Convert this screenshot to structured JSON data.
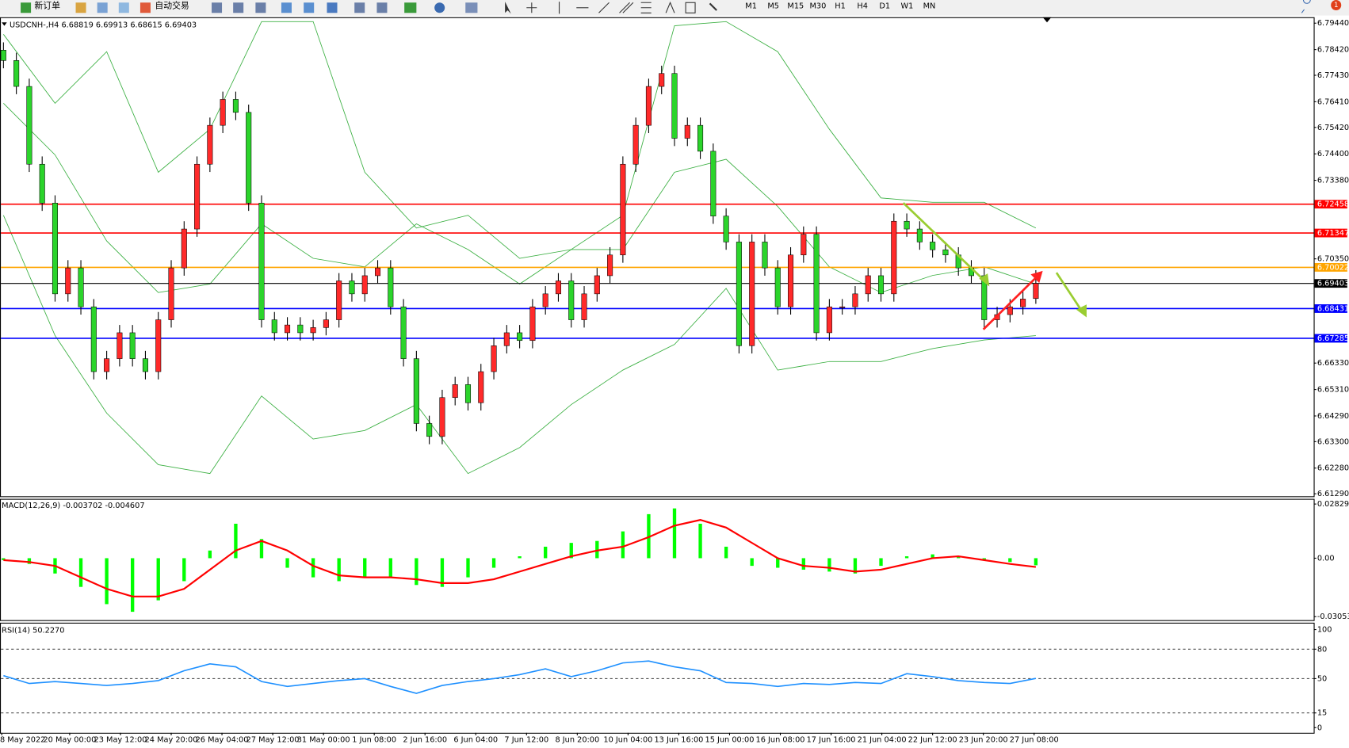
{
  "toolbar": {
    "new_order": "新订单",
    "auto_trading": "自动交易",
    "timeframes": [
      "M1",
      "M5",
      "M15",
      "M30",
      "H1",
      "H4",
      "D1",
      "W1",
      "MN"
    ],
    "notifications": 1
  },
  "chart_data": [
    {
      "type": "candlestick",
      "title": "USDCNH-,H4",
      "up_color": "#ff2a2a",
      "down_color": "#2bd42b",
      "candles": [
        [
          6.784,
          6.787,
          6.777,
          6.78
        ],
        [
          6.78,
          6.783,
          6.767,
          6.77
        ],
        [
          6.77,
          6.773,
          6.737,
          6.74
        ],
        [
          6.74,
          6.743,
          6.722,
          6.725
        ],
        [
          6.725,
          6.728,
          6.687,
          6.69
        ],
        [
          6.69,
          6.703,
          6.687,
          6.7
        ],
        [
          6.7,
          6.703,
          6.682,
          6.685
        ],
        [
          6.685,
          6.688,
          6.657,
          6.66
        ],
        [
          6.66,
          6.668,
          6.657,
          6.665
        ],
        [
          6.665,
          6.678,
          6.662,
          6.675
        ],
        [
          6.675,
          6.678,
          6.662,
          6.665
        ],
        [
          6.665,
          6.668,
          6.657,
          6.66
        ],
        [
          6.66,
          6.683,
          6.657,
          6.68
        ],
        [
          6.68,
          6.703,
          6.677,
          6.7
        ],
        [
          6.7,
          6.718,
          6.697,
          6.715
        ],
        [
          6.715,
          6.743,
          6.712,
          6.74
        ],
        [
          6.74,
          6.758,
          6.737,
          6.755
        ],
        [
          6.755,
          6.768,
          6.752,
          6.765
        ],
        [
          6.765,
          6.768,
          6.757,
          6.76
        ],
        [
          6.76,
          6.763,
          6.722,
          6.725
        ],
        [
          6.725,
          6.728,
          6.677,
          6.68
        ],
        [
          6.68,
          6.683,
          6.672,
          6.675
        ],
        [
          6.675,
          6.681,
          6.672,
          6.678
        ],
        [
          6.678,
          6.681,
          6.672,
          6.675
        ],
        [
          6.675,
          6.68,
          6.672,
          6.677
        ],
        [
          6.677,
          6.683,
          6.674,
          6.68
        ],
        [
          6.68,
          6.698,
          6.677,
          6.695
        ],
        [
          6.695,
          6.698,
          6.687,
          6.69
        ],
        [
          6.69,
          6.7,
          6.687,
          6.697
        ],
        [
          6.697,
          6.703,
          6.694,
          6.7
        ],
        [
          6.7,
          6.703,
          6.682,
          6.685
        ],
        [
          6.685,
          6.688,
          6.662,
          6.665
        ],
        [
          6.665,
          6.668,
          6.637,
          6.64
        ],
        [
          6.64,
          6.643,
          6.632,
          6.635
        ],
        [
          6.635,
          6.653,
          6.632,
          6.65
        ],
        [
          6.65,
          6.658,
          6.647,
          6.655
        ],
        [
          6.655,
          6.658,
          6.645,
          6.648
        ],
        [
          6.648,
          6.663,
          6.645,
          6.66
        ],
        [
          6.66,
          6.673,
          6.657,
          6.67
        ],
        [
          6.67,
          6.678,
          6.667,
          6.675
        ],
        [
          6.675,
          6.678,
          6.669,
          6.672
        ],
        [
          6.672,
          6.688,
          6.669,
          6.685
        ],
        [
          6.685,
          6.693,
          6.682,
          6.69
        ],
        [
          6.69,
          6.698,
          6.687,
          6.695
        ],
        [
          6.695,
          6.698,
          6.677,
          6.68
        ],
        [
          6.68,
          6.693,
          6.677,
          6.69
        ],
        [
          6.69,
          6.7,
          6.687,
          6.697
        ],
        [
          6.697,
          6.708,
          6.694,
          6.705
        ],
        [
          6.705,
          6.743,
          6.702,
          6.74
        ],
        [
          6.74,
          6.758,
          6.737,
          6.755
        ],
        [
          6.755,
          6.773,
          6.752,
          6.77
        ],
        [
          6.77,
          6.778,
          6.767,
          6.775
        ],
        [
          6.775,
          6.778,
          6.747,
          6.75
        ],
        [
          6.75,
          6.758,
          6.747,
          6.755
        ],
        [
          6.755,
          6.758,
          6.742,
          6.745
        ],
        [
          6.745,
          6.748,
          6.717,
          6.72
        ],
        [
          6.72,
          6.723,
          6.707,
          6.71
        ],
        [
          6.71,
          6.713,
          6.667,
          6.67
        ],
        [
          6.67,
          6.713,
          6.667,
          6.71
        ],
        [
          6.71,
          6.713,
          6.697,
          6.7
        ],
        [
          6.7,
          6.703,
          6.682,
          6.685
        ],
        [
          6.685,
          6.708,
          6.682,
          6.705
        ],
        [
          6.705,
          6.716,
          6.702,
          6.713
        ],
        [
          6.713,
          6.716,
          6.672,
          6.675
        ],
        [
          6.675,
          6.688,
          6.672,
          6.685
        ],
        [
          6.685,
          6.688,
          6.682,
          6.685
        ],
        [
          6.685,
          6.693,
          6.682,
          6.69
        ],
        [
          6.69,
          6.7,
          6.687,
          6.697
        ],
        [
          6.697,
          6.7,
          6.687,
          6.69
        ],
        [
          6.69,
          6.721,
          6.687,
          6.718
        ],
        [
          6.718,
          6.721,
          6.712,
          6.715
        ],
        [
          6.715,
          6.718,
          6.707,
          6.71
        ],
        [
          6.71,
          6.713,
          6.704,
          6.707
        ],
        [
          6.707,
          6.71,
          6.702,
          6.705
        ],
        [
          6.705,
          6.708,
          6.697,
          6.7
        ],
        [
          6.7,
          6.703,
          6.694,
          6.697
        ],
        [
          6.697,
          6.7,
          6.677,
          6.68
        ],
        [
          6.68,
          6.685,
          6.677,
          6.682
        ],
        [
          6.682,
          6.688,
          6.679,
          6.685
        ],
        [
          6.685,
          6.691,
          6.682,
          6.688
        ],
        [
          6.68819,
          6.69913,
          6.68615,
          6.69403
        ]
      ],
      "bands": {
        "x": [
          0,
          4,
          8,
          12,
          16,
          20,
          24,
          28,
          32,
          36,
          40,
          44,
          48,
          52,
          56,
          60,
          64,
          68,
          72,
          76,
          80
        ],
        "color": "#3cb043",
        "series": [
          {
            "values": [
              6.7901,
              6.7635,
              6.7834,
              6.7369,
              6.7535,
              6.795,
              6.795,
              6.7369,
              6.7154,
              6.7203,
              6.7037,
              6.7071,
              6.7203,
              6.7934,
              6.795,
              6.7834,
              6.7535,
              6.727,
              6.7253,
              6.7253,
              6.7154
            ]
          },
          {
            "values": [
              6.7635,
              6.7436,
              6.7104,
              6.6905,
              6.6938,
              6.717,
              6.7037,
              6.7004,
              6.717,
              6.7071,
              6.6938,
              6.7071,
              6.7071,
              6.7369,
              6.7419,
              6.7237,
              6.7004,
              6.6905,
              6.6971,
              6.7004,
              6.6938
            ]
          },
          {
            "values": [
              6.7203,
              6.6739,
              6.644,
              6.6241,
              6.6207,
              6.6506,
              6.634,
              6.6373,
              6.6473,
              6.6207,
              6.6307,
              6.6473,
              6.6606,
              6.6705,
              6.6921,
              6.6606,
              6.6639,
              6.6639,
              6.6689,
              6.6722,
              6.6739
            ]
          }
        ]
      },
      "levels": [
        {
          "value": 6.72458,
          "color": "#ff0000"
        },
        {
          "value": 6.71347,
          "color": "#ff0000"
        },
        {
          "value": 6.70022,
          "color": "#ffa500"
        },
        {
          "value": 6.69403,
          "color": "#000000"
        },
        {
          "value": 6.68431,
          "color": "#0000ff"
        },
        {
          "value": 6.67285,
          "color": "#0000ff"
        }
      ],
      "ylim": [
        6.6116,
        6.7967
      ],
      "yticks": [
        {
          "value": 6.7944,
          "label": "6.79440"
        },
        {
          "value": 6.7842,
          "label": "6.78420"
        },
        {
          "value": 6.7743,
          "label": "6.77430"
        },
        {
          "value": 6.7641,
          "label": "6.76410"
        },
        {
          "value": 6.7542,
          "label": "6.75420"
        },
        {
          "value": 6.744,
          "label": "6.74400"
        },
        {
          "value": 6.7338,
          "label": "6.73380"
        },
        {
          "value": 6.7035,
          "label": "6.70350"
        },
        {
          "value": 6.6633,
          "label": "6.66330"
        },
        {
          "value": 6.6531,
          "label": "6.65310"
        },
        {
          "value": 6.6429,
          "label": "6.64290"
        },
        {
          "value": 6.633,
          "label": "6.63300"
        },
        {
          "value": 6.6228,
          "label": "6.62280"
        },
        {
          "value": 6.6129,
          "label": "6.61290"
        }
      ],
      "x_labels": [
        "8 May 2022",
        "20 May 00:00",
        "23 May 12:00",
        "24 May 20:00",
        "26 May 04:00",
        "27 May 12:00",
        "31 May 00:00",
        "1 Jun 08:00",
        "2 Jun 16:00",
        "6 Jun 04:00",
        "7 Jun 12:00",
        "8 Jun 20:00",
        "10 Jun 04:00",
        "13 Jun 16:00",
        "15 Jun 00:00",
        "16 Jun 08:00",
        "17 Jun 16:00",
        "21 Jun 04:00",
        "22 Jun 12:00",
        "23 Jun 20:00",
        "27 Jun 08:00"
      ]
    },
    {
      "type": "macd",
      "title": "MACD(12,26,9)",
      "x": [
        0,
        2,
        4,
        6,
        8,
        10,
        12,
        14,
        16,
        18,
        20,
        22,
        24,
        26,
        28,
        30,
        32,
        34,
        36,
        38,
        40,
        42,
        44,
        46,
        48,
        50,
        52,
        54,
        56,
        58,
        60,
        62,
        64,
        66,
        68,
        70,
        72,
        74,
        76,
        78,
        80
      ],
      "series": [
        {
          "type": "bar",
          "color": "#00ff00",
          "values": [
            -0.001,
            -0.003,
            -0.008,
            -0.015,
            -0.024,
            -0.028,
            -0.022,
            -0.012,
            0.004,
            0.018,
            0.01,
            -0.005,
            -0.01,
            -0.012,
            -0.01,
            -0.01,
            -0.014,
            -0.015,
            -0.01,
            -0.005,
            0.001,
            0.006,
            0.008,
            0.009,
            0.014,
            0.023,
            0.026,
            0.018,
            0.006,
            -0.004,
            -0.005,
            -0.006,
            -0.007,
            -0.008,
            -0.004,
            0.001,
            0.002,
            0.001,
            -0.001,
            -0.002,
            -0.003702
          ]
        },
        {
          "type": "line",
          "color": "#ff0000",
          "values": [
            -0.001,
            -0.002,
            -0.004,
            -0.01,
            -0.016,
            -0.02,
            -0.02,
            -0.016,
            -0.006,
            0.004,
            0.009,
            0.004,
            -0.004,
            -0.009,
            -0.01,
            -0.01,
            -0.011,
            -0.013,
            -0.013,
            -0.011,
            -0.007,
            -0.003,
            0.001,
            0.004,
            0.006,
            0.011,
            0.017,
            0.02,
            0.016,
            0.008,
            0.0,
            -0.004,
            -0.005,
            -0.007,
            -0.006,
            -0.003,
            0.0,
            0.001,
            -0.001,
            -0.003,
            -0.004607
          ]
        }
      ],
      "ylim": [
        -0.0319,
        0.031
      ],
      "yticks": [
        0.02829,
        {
          "value": 0,
          "label": "0.00"
        },
        -0.030537
      ]
    },
    {
      "type": "line",
      "title": "RSI(14)",
      "x": [
        0,
        2,
        4,
        6,
        8,
        10,
        12,
        14,
        16,
        18,
        20,
        22,
        24,
        26,
        28,
        30,
        32,
        34,
        36,
        38,
        40,
        42,
        44,
        46,
        48,
        50,
        52,
        54,
        56,
        58,
        60,
        62,
        64,
        66,
        68,
        70,
        72,
        74,
        76,
        78,
        80
      ],
      "series": [
        {
          "type": "line",
          "color": "#1e90ff",
          "values": [
            53,
            45,
            47,
            45,
            43,
            45,
            48,
            58,
            65,
            62,
            47,
            42,
            45,
            48,
            50,
            42,
            35,
            43,
            47,
            50,
            54,
            60,
            52,
            58,
            66,
            68,
            62,
            58,
            46,
            45,
            42,
            45,
            44,
            46,
            45,
            55,
            52,
            48,
            46,
            45,
            50.227
          ],
          "value_labels": [
            null,
            null,
            null,
            null,
            null,
            null,
            null,
            null,
            null,
            null,
            null,
            null,
            null,
            null,
            null,
            null,
            null,
            null,
            null,
            null,
            null,
            null,
            null,
            null,
            null,
            null,
            null,
            null,
            null,
            null,
            null,
            null,
            null,
            null,
            null,
            null,
            null,
            null,
            null,
            null,
            "50.2270"
          ]
        }
      ],
      "ylim": [
        0,
        100
      ],
      "yticks": [
        100,
        80,
        50,
        15,
        0
      ],
      "grid": "dashed"
    }
  ]
}
